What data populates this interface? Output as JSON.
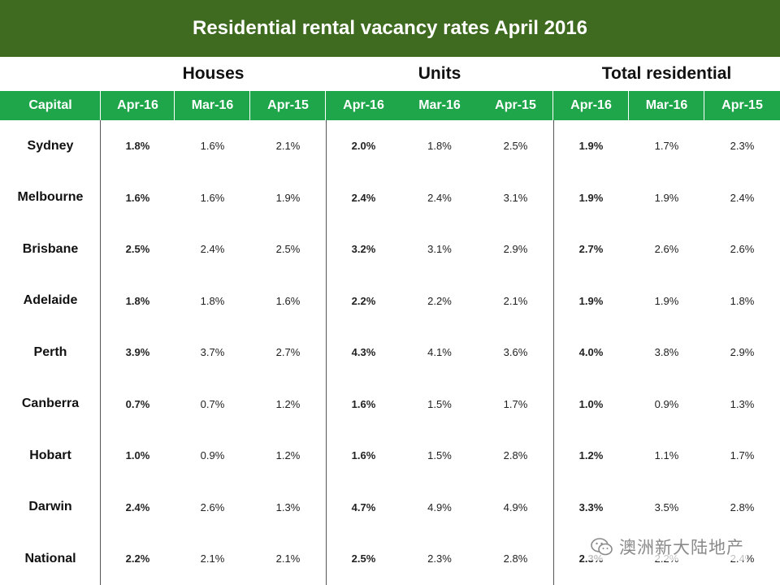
{
  "title": "Residential rental vacancy rates April 2016",
  "groups": {
    "houses": "Houses",
    "units": "Units",
    "total": "Total residential"
  },
  "columns": [
    "Capital",
    "Apr-16",
    "Mar-16",
    "Apr-15",
    "Apr-16",
    "Mar-16",
    "Apr-15",
    "Apr-16",
    "Mar-16",
    "Apr-15"
  ],
  "rows": [
    {
      "city": "Sydney",
      "values": [
        "1.8%",
        "1.6%",
        "2.1%",
        "2.0%",
        "1.8%",
        "2.5%",
        "1.9%",
        "1.7%",
        "2.3%"
      ]
    },
    {
      "city": "Melbourne",
      "values": [
        "1.6%",
        "1.6%",
        "1.9%",
        "2.4%",
        "2.4%",
        "3.1%",
        "1.9%",
        "1.9%",
        "2.4%"
      ]
    },
    {
      "city": "Brisbane",
      "values": [
        "2.5%",
        "2.4%",
        "2.5%",
        "3.2%",
        "3.1%",
        "2.9%",
        "2.7%",
        "2.6%",
        "2.6%"
      ]
    },
    {
      "city": "Adelaide",
      "values": [
        "1.8%",
        "1.8%",
        "1.6%",
        "2.2%",
        "2.2%",
        "2.1%",
        "1.9%",
        "1.9%",
        "1.8%"
      ]
    },
    {
      "city": "Perth",
      "values": [
        "3.9%",
        "3.7%",
        "2.7%",
        "4.3%",
        "4.1%",
        "3.6%",
        "4.0%",
        "3.8%",
        "2.9%"
      ]
    },
    {
      "city": "Canberra",
      "values": [
        "0.7%",
        "0.7%",
        "1.2%",
        "1.6%",
        "1.5%",
        "1.7%",
        "1.0%",
        "0.9%",
        "1.3%"
      ]
    },
    {
      "city": "Hobart",
      "values": [
        "1.0%",
        "0.9%",
        "1.2%",
        "1.6%",
        "1.5%",
        "2.8%",
        "1.2%",
        "1.1%",
        "1.7%"
      ]
    },
    {
      "city": "Darwin",
      "values": [
        "2.4%",
        "2.6%",
        "1.3%",
        "4.7%",
        "4.9%",
        "4.9%",
        "3.3%",
        "3.5%",
        "2.8%"
      ]
    },
    {
      "city": "National",
      "values": [
        "2.2%",
        "2.1%",
        "2.1%",
        "2.5%",
        "2.3%",
        "2.8%",
        "2.3%",
        "2.2%",
        "2.4%"
      ]
    }
  ],
  "watermark": {
    "text": "澳洲新大陆地产",
    "icon": "wechat-icon"
  },
  "colors": {
    "title_bg": "#3e6b1f",
    "header_bg": "#1fa64a"
  }
}
